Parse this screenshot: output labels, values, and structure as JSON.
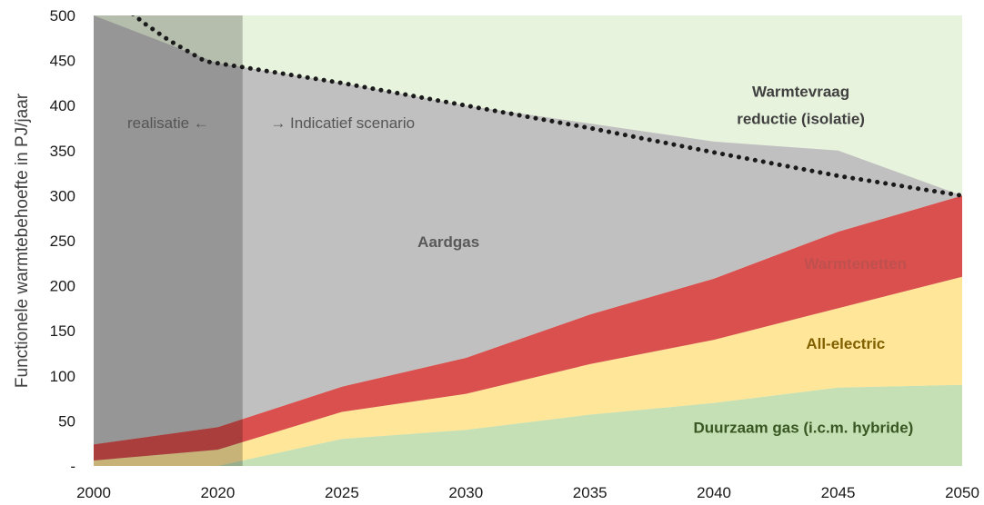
{
  "chart_data": {
    "type": "area",
    "ylabel": "Functionele warmtebehoefte in PJ/jaar",
    "x": [
      2000,
      2020,
      2025,
      2030,
      2035,
      2040,
      2045,
      2050
    ],
    "x_tick_labels": [
      "2000",
      "2020",
      "2025",
      "2030",
      "2035",
      "2040",
      "2045",
      "2050"
    ],
    "ylim": [
      0,
      500
    ],
    "y_ticks": [
      0,
      50,
      100,
      150,
      200,
      250,
      300,
      350,
      400,
      450,
      500
    ],
    "y_tick_labels": [
      "-",
      "50",
      "100",
      "150",
      "200",
      "250",
      "300",
      "350",
      "400",
      "450",
      "500"
    ],
    "stacked": true,
    "series": [
      {
        "name": "Duurzaam gas (i.c.m. hybride)",
        "color": "#c5e0b4",
        "values": [
          0,
          0,
          30,
          40,
          57,
          70,
          87,
          90
        ]
      },
      {
        "name": "All-electric",
        "color": "#ffe699",
        "values": [
          6,
          18,
          30,
          40,
          56,
          70,
          88,
          120
        ]
      },
      {
        "name": "Warmtenetten",
        "color": "#d9504f",
        "values": [
          18,
          25,
          28,
          40,
          55,
          68,
          85,
          90
        ]
      },
      {
        "name": "Aardgas",
        "color": "#c0c0c0",
        "values": [
          476,
          404,
          337,
          280,
          212,
          152,
          90,
          0
        ]
      }
    ],
    "demand_line": {
      "x": [
        2000,
        2004,
        2008,
        2012,
        2016,
        2018,
        2020,
        2025,
        2030,
        2035,
        2040,
        2045,
        2050
      ],
      "values": [
        560,
        515,
        492,
        473,
        457,
        449,
        447,
        425,
        400,
        375,
        348,
        322,
        300
      ]
    },
    "reduction_area": {
      "name": "Warmtevraag reductie (isolatie)",
      "color": "#e8f3de"
    },
    "realisatie_until": 2021,
    "period_labels": {
      "left": "realisatie ←",
      "right": "→ Indicatief scenario"
    },
    "annotations": [
      {
        "text_lines": [
          "Warmtevraag",
          "reductie (isolatie)"
        ],
        "x": 2043.5,
        "y": 410,
        "color": "#404040"
      },
      {
        "text_lines": [
          "Aardgas"
        ],
        "x": 2029.3,
        "y": 243,
        "color": "#595959"
      },
      {
        "text_lines": [
          "Warmtenetten"
        ],
        "x": 2045.7,
        "y": 219,
        "color": "#c0504d"
      },
      {
        "text_lines": [
          "All-electric"
        ],
        "x": 2045.3,
        "y": 130,
        "color": "#806000"
      },
      {
        "text_lines": [
          "Duurzaam gas (i.c.m. hybride)"
        ],
        "x": 2043.6,
        "y": 37,
        "color": "#385723"
      }
    ],
    "grid": false,
    "legend": "none"
  }
}
